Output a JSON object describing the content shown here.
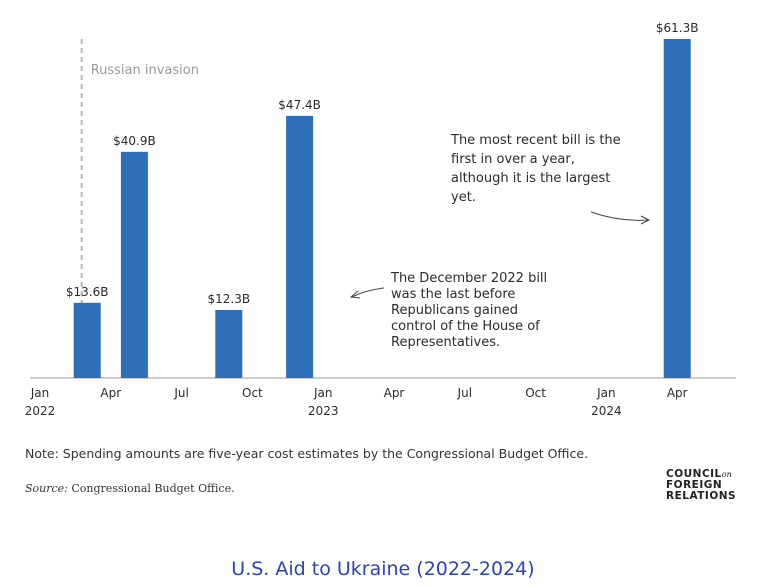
{
  "chart_data": {
    "type": "bar",
    "unit": "billion USD",
    "bars": [
      {
        "date": "2022-03",
        "value": 13.6,
        "label": "$13.6B"
      },
      {
        "date": "2022-05",
        "value": 40.9,
        "label": "$40.9B"
      },
      {
        "date": "2022-09",
        "value": 12.3,
        "label": "$12.3B"
      },
      {
        "date": "2022-12",
        "value": 47.4,
        "label": "$47.4B"
      },
      {
        "date": "2024-04",
        "value": 61.3,
        "label": "$61.3B"
      }
    ],
    "x_ticks": [
      {
        "date": "2022-01",
        "label": "Jan",
        "year": "2022"
      },
      {
        "date": "2022-04",
        "label": "Apr"
      },
      {
        "date": "2022-07",
        "label": "Jul"
      },
      {
        "date": "2022-10",
        "label": "Oct"
      },
      {
        "date": "2023-01",
        "label": "Jan",
        "year": "2023"
      },
      {
        "date": "2023-04",
        "label": "Apr"
      },
      {
        "date": "2023-07",
        "label": "Jul"
      },
      {
        "date": "2023-10",
        "label": "Oct"
      },
      {
        "date": "2024-01",
        "label": "Jan",
        "year": "2024"
      },
      {
        "date": "2024-04",
        "label": "Apr"
      }
    ],
    "ylim": [
      0,
      61.3
    ],
    "grid": false,
    "event_marker": {
      "date": "2022-02-24",
      "label": "Russian invasion"
    },
    "annotations": [
      {
        "lines": [
          "The December 2022 bill",
          "was the last before",
          "Republicans gained",
          "control of the House of",
          "Representatives."
        ],
        "points_to": "2022-12"
      },
      {
        "lines": [
          "The most recent bill is the",
          "first in over a year,",
          "although it is the largest",
          "yet."
        ],
        "points_to": "2024-04"
      }
    ],
    "colors": {
      "bar": "#2e6fba",
      "text": "#2b2b2b",
      "axis": "#999999",
      "marker": "#b5b5b5"
    }
  },
  "footer": {
    "note": "Note: Spending amounts are five-year cost estimates by the Congressional Budget Office.",
    "source_label": "Source:",
    "source_text": " Congressional Budget Office.",
    "logo_line1": "COUNCIL",
    "logo_on": "on",
    "logo_line2": "FOREIGN",
    "logo_line3": "RELATIONS"
  },
  "caption": "U.S. Aid to Ukraine (2022-2024)"
}
